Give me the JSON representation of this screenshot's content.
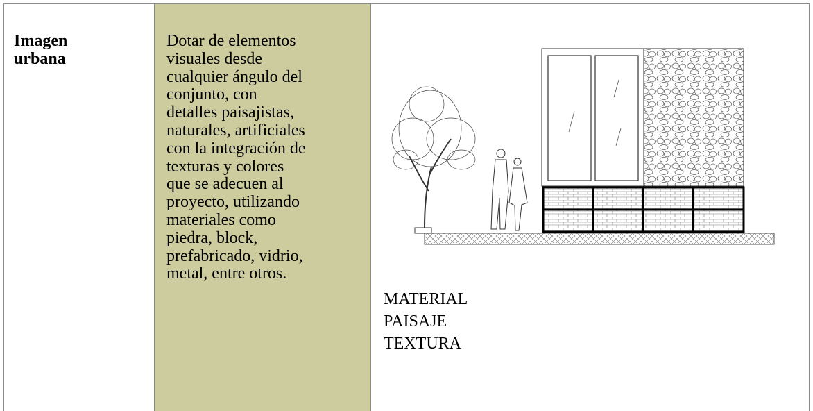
{
  "table": {
    "rows": [
      [
        {
          "lines": [
            "Imagen",
            "urbana"
          ]
        },
        {
          "lines": [
            "Dotar de elementos",
            "visuales desde",
            "cualquier ángulo del",
            "conjunto, con",
            "detalles paisajistas,",
            "naturales, artificiales",
            "con la integración de",
            "texturas y colores",
            "que se adecuen al",
            "proyecto, utilizando",
            "materiales como",
            "piedra, block,",
            "prefabricado, vidrio,",
            "metal, entre otros."
          ]
        },
        {
          "lines": [
            "MATERIAL",
            "PAISAJE",
            "TEXTURA"
          ]
        }
      ]
    ]
  }
}
